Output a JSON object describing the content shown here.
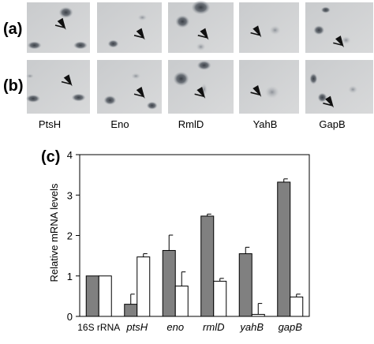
{
  "panels": {
    "a": "(a)",
    "b": "(b)",
    "c": "(c)"
  },
  "gel_proteins": [
    "PtsH",
    "Eno",
    "RmlD",
    "YahB",
    "GapB"
  ],
  "chart_data": {
    "type": "bar",
    "categories": [
      "16S rRNA",
      "ptsH",
      "eno",
      "rmlD",
      "yahB",
      "gapB"
    ],
    "series": [
      {
        "values": [
          1.0,
          0.3,
          1.63,
          2.48,
          1.55,
          3.32
        ],
        "errors": [
          0.0,
          0.25,
          0.38,
          0.05,
          0.16,
          0.08
        ],
        "color": "#808080"
      },
      {
        "values": [
          1.0,
          1.47,
          0.75,
          0.87,
          0.05,
          0.48
        ],
        "errors": [
          0.0,
          0.08,
          0.35,
          0.07,
          0.27,
          0.07
        ],
        "color": "#ffffff"
      }
    ],
    "ylabel": "Relative mRNA levels",
    "ylim": [
      0,
      4
    ],
    "yticks": [
      "0",
      "1",
      "2",
      "3",
      "4"
    ],
    "grid": false,
    "legend": "none"
  }
}
